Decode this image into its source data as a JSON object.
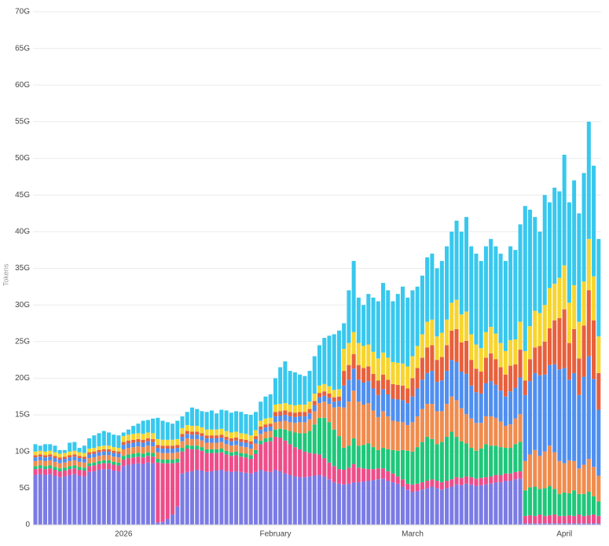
{
  "chart_data": {
    "type": "stacked-bar",
    "ylabel": "Tokens",
    "ylim": [
      0,
      70
    ],
    "yticks": [
      0,
      {
        "value": 5,
        "label": "5G"
      },
      {
        "value": 10,
        "label": "10G"
      },
      {
        "value": 15,
        "label": "15G"
      },
      {
        "value": 20,
        "label": "20G"
      },
      {
        "value": 25,
        "label": "25G"
      },
      {
        "value": 30,
        "label": "30G"
      },
      {
        "value": 35,
        "label": "35G"
      },
      {
        "value": 40,
        "label": "40G"
      },
      {
        "value": 45,
        "label": "45G"
      },
      {
        "value": 50,
        "label": "50G"
      },
      {
        "value": 55,
        "label": "55G"
      },
      {
        "value": 60,
        "label": "60G"
      },
      {
        "value": 65,
        "label": "65G"
      },
      {
        "value": 70,
        "label": "70G"
      }
    ],
    "grid": true,
    "categories": [
      null,
      null,
      null,
      null,
      null,
      null,
      null,
      null,
      null,
      null,
      null,
      null,
      null,
      null,
      null,
      null,
      null,
      null,
      "2026",
      null,
      null,
      null,
      null,
      null,
      null,
      null,
      null,
      null,
      null,
      null,
      null,
      null,
      null,
      null,
      null,
      null,
      null,
      null,
      null,
      null,
      null,
      null,
      null,
      null,
      null,
      null,
      null,
      null,
      null,
      "February",
      null,
      null,
      null,
      null,
      null,
      null,
      null,
      null,
      null,
      null,
      null,
      null,
      null,
      null,
      null,
      null,
      null,
      null,
      null,
      null,
      null,
      null,
      null,
      null,
      null,
      null,
      null,
      "March",
      null,
      null,
      null,
      null,
      null,
      null,
      null,
      null,
      null,
      null,
      null,
      null,
      null,
      null,
      null,
      null,
      null,
      null,
      null,
      null,
      null,
      null,
      null,
      null,
      null,
      null,
      null,
      null,
      null,
      null,
      "April",
      null,
      null,
      null,
      null,
      null,
      null,
      null
    ],
    "series": [
      {
        "color": "#7b7be6",
        "values": [
          6.8,
          6.9,
          6.8,
          6.9,
          6.7,
          6.5,
          6.6,
          6.8,
          6.9,
          6.7,
          6.6,
          7.2,
          7.3,
          7.5,
          7.6,
          7.6,
          7.4,
          7.3,
          8.0,
          8.2,
          8.3,
          8.4,
          8.3,
          8.5,
          8.4,
          0.3,
          0.4,
          0.8,
          1.4,
          2.5,
          7.0,
          7.2,
          7.3,
          7.5,
          7.4,
          7.2,
          7.3,
          7.4,
          7.5,
          7.3,
          7.2,
          7.3,
          7.2,
          7.1,
          7.0,
          7.2,
          7.5,
          7.3,
          7.2,
          7.5,
          7.3,
          7.0,
          6.8,
          6.6,
          6.5,
          6.5,
          6.6,
          6.7,
          6.8,
          6.6,
          6.2,
          5.8,
          5.6,
          5.5,
          5.6,
          5.8,
          5.8,
          5.9,
          6.0,
          6.1,
          6.2,
          6.3,
          6.0,
          5.8,
          5.6,
          5.2,
          4.8,
          4.5,
          4.6,
          4.8,
          5.0,
          5.2,
          5.0,
          4.8,
          5.0,
          5.2,
          5.5,
          5.4,
          5.6,
          5.5,
          5.3,
          5.4,
          5.5,
          5.6,
          5.8,
          5.8,
          6.0,
          6.0,
          6.2,
          6.3,
          0.2,
          0.2,
          0.2,
          0.2,
          0.2,
          0.2,
          0.2,
          0.2,
          0.2,
          0.2,
          0.2,
          0.2,
          0.2,
          0.2,
          0.2,
          0.2
        ]
      },
      {
        "color": "#ee4d8a",
        "values": [
          0.8,
          0.8,
          0.8,
          0.8,
          0.8,
          0.8,
          0.8,
          0.8,
          0.8,
          0.8,
          0.8,
          0.8,
          0.8,
          0.8,
          0.8,
          0.8,
          0.8,
          0.8,
          0.9,
          0.9,
          0.9,
          0.9,
          0.9,
          0.9,
          0.9,
          8.2,
          8.0,
          7.6,
          7.0,
          6.0,
          3.0,
          3.2,
          3.0,
          2.8,
          2.7,
          2.6,
          2.5,
          2.4,
          2.4,
          2.3,
          2.2,
          2.2,
          2.1,
          2.1,
          2.0,
          2.5,
          3.5,
          4.0,
          4.2,
          4.5,
          4.6,
          4.5,
          4.2,
          4.0,
          3.8,
          3.5,
          3.2,
          3.0,
          2.8,
          2.5,
          2.3,
          2.2,
          2.0,
          2.0,
          2.2,
          2.5,
          2.0,
          1.8,
          1.6,
          1.5,
          1.5,
          1.4,
          1.3,
          1.2,
          1.0,
          1.0,
          0.8,
          1,
          1,
          1,
          1,
          1,
          1,
          1,
          1,
          1,
          1,
          1,
          1,
          1,
          1,
          1,
          1,
          1,
          1,
          1,
          1,
          1,
          1,
          1,
          1.0,
          1.1,
          1.0,
          1.2,
          1.0,
          1.1,
          1.2,
          1.0,
          1.0,
          1.1,
          1.0,
          1.2,
          1.0,
          1.1,
          1.2,
          1.0
        ]
      },
      {
        "color": "#1fc77a",
        "values": [
          0.4,
          0.4,
          0.4,
          0.4,
          0.4,
          0.4,
          0.4,
          0.4,
          0.4,
          0.4,
          0.4,
          0.4,
          0.4,
          0.4,
          0.4,
          0.4,
          0.4,
          0.4,
          0.5,
          0.5,
          0.5,
          0.5,
          0.5,
          0.5,
          0.5,
          0.5,
          0.5,
          0.5,
          0.5,
          0.5,
          0.5,
          0.5,
          0.5,
          0.5,
          0.5,
          0.5,
          0.5,
          0.5,
          0.5,
          0.5,
          0.5,
          0.5,
          0.5,
          0.5,
          0.5,
          0.5,
          0.5,
          0.5,
          0.5,
          1.0,
          1.2,
          1.5,
          1.8,
          2.0,
          2.2,
          2.5,
          3.0,
          4.0,
          5.0,
          5.5,
          5.5,
          5.0,
          4.5,
          3.0,
          3.0,
          3.5,
          3.0,
          3.2,
          3.5,
          3.0,
          2.5,
          2.8,
          3.0,
          3.2,
          3.5,
          4.0,
          4.5,
          4.5,
          5.0,
          5.5,
          6.0,
          5.5,
          5.0,
          5.5,
          6.0,
          6.5,
          5.5,
          5.0,
          4.5,
          4.0,
          3.8,
          4.0,
          4.5,
          4.2,
          4.0,
          3.8,
          3.5,
          3.5,
          3.8,
          4.0,
          3.5,
          3.8,
          4.0,
          3.5,
          3.8,
          4.0,
          3.5,
          3.0,
          3.2,
          3.0,
          3.5,
          2.8,
          3.0,
          3.2,
          2.5,
          2.0
        ]
      },
      {
        "color": "#f08c4e",
        "values": [
          0.7,
          0.7,
          0.7,
          0.7,
          0.7,
          0.7,
          0.7,
          0.7,
          0.7,
          0.7,
          0.7,
          0.7,
          0.7,
          0.7,
          0.7,
          0.7,
          0.7,
          0.7,
          0.9,
          0.9,
          0.9,
          0.9,
          0.9,
          0.9,
          0.9,
          0.9,
          0.9,
          0.9,
          0.9,
          0.9,
          0.9,
          0.9,
          0.9,
          0.9,
          0.9,
          0.9,
          0.9,
          0.9,
          0.9,
          0.9,
          0.9,
          0.9,
          0.9,
          0.9,
          0.9,
          0.9,
          0.9,
          0.9,
          0.9,
          1,
          1,
          1.2,
          1.2,
          1.3,
          1.5,
          1.5,
          1.6,
          1.8,
          2.0,
          2.2,
          2.5,
          3.0,
          4.0,
          5.5,
          6.0,
          6.5,
          6.0,
          5.5,
          5.5,
          5.0,
          4.5,
          5.0,
          4.5,
          4.0,
          4.0,
          3.8,
          3.5,
          4.0,
          4.2,
          4.5,
          4.5,
          4.8,
          4.5,
          4.2,
          4.5,
          4.8,
          5.0,
          4.5,
          4.0,
          4.0,
          3.8,
          3.5,
          3.8,
          4.0,
          3.8,
          3.5,
          3.0,
          3.2,
          3.5,
          3.8,
          4.0,
          4.5,
          5.0,
          4.5,
          5.0,
          5.5,
          5.0,
          4.5,
          4.0,
          4.5,
          4.0,
          3.5,
          4.0,
          4.5,
          4.0,
          3.5
        ]
      },
      {
        "color": "#4f8ff0",
        "values": [
          0.5,
          0.5,
          0.5,
          0.5,
          0.5,
          0.5,
          0.5,
          0.5,
          0.5,
          0.5,
          0.5,
          0.5,
          0.5,
          0.5,
          0.5,
          0.5,
          0.5,
          0.5,
          0.6,
          0.6,
          0.6,
          0.6,
          0.6,
          0.6,
          0.6,
          0.6,
          0.6,
          0.6,
          0.6,
          0.6,
          0.6,
          0.6,
          0.6,
          0.6,
          0.6,
          0.6,
          0.6,
          0.6,
          0.6,
          0.6,
          0.6,
          0.6,
          0.6,
          0.6,
          0.6,
          0.6,
          0.6,
          0.6,
          0.6,
          0.8,
          0.8,
          0.8,
          0.8,
          0.8,
          0.8,
          0.8,
          0.8,
          0.8,
          0.8,
          0.8,
          0.8,
          0.8,
          0.8,
          3.0,
          3.0,
          3.0,
          3.0,
          3.0,
          3.0,
          3.0,
          3.0,
          3.0,
          3.0,
          3.0,
          3.0,
          3.0,
          3.0,
          3.5,
          3.8,
          4.0,
          4.2,
          4.5,
          4.0,
          4.2,
          4.5,
          5.0,
          5.2,
          5.0,
          5.5,
          4.5,
          4.2,
          4.0,
          4.5,
          4.8,
          4.5,
          4.2,
          4.0,
          4.5,
          4.2,
          5.0,
          9.0,
          10.0,
          10.5,
          11.0,
          10.5,
          11.0,
          12.0,
          12.5,
          13.0,
          11.0,
          12.0,
          10.0,
          12.0,
          14.0,
          12.0,
          9.0
        ]
      },
      {
        "color": "#e8603c",
        "values": [
          0.3,
          0.3,
          0.3,
          0.3,
          0.3,
          0.3,
          0.3,
          0.3,
          0.3,
          0.3,
          0.3,
          0.3,
          0.3,
          0.3,
          0.3,
          0.3,
          0.3,
          0.3,
          0.4,
          0.4,
          0.4,
          0.4,
          0.4,
          0.4,
          0.4,
          0.4,
          0.4,
          0.4,
          0.4,
          0.4,
          0.4,
          0.4,
          0.4,
          0.4,
          0.4,
          0.4,
          0.4,
          0.4,
          0.4,
          0.4,
          0.4,
          0.4,
          0.4,
          0.4,
          0.4,
          0.4,
          0.4,
          0.4,
          0.4,
          0.6,
          0.6,
          0.6,
          0.6,
          0.6,
          0.6,
          0.6,
          0.6,
          0.6,
          0.6,
          0.6,
          0.6,
          0.6,
          0.6,
          2.0,
          2.0,
          2.0,
          2.0,
          2.0,
          2.0,
          2.0,
          2.0,
          2.0,
          2.0,
          2.0,
          2.0,
          2.0,
          2.0,
          2.5,
          2.8,
          3.0,
          3.5,
          3.5,
          3.0,
          3.2,
          3.5,
          4.0,
          4.5,
          4.0,
          4.5,
          3.5,
          3.2,
          3.0,
          3.5,
          3.8,
          3.5,
          3.2,
          3.0,
          3.5,
          3.2,
          3.8,
          2.0,
          3.0,
          3.5,
          4.0,
          4.5,
          5.0,
          6.0,
          7.0,
          8.0,
          5.0,
          6.0,
          5.0,
          7.0,
          9.0,
          8.0,
          5.0
        ]
      },
      {
        "color": "#f7d52e",
        "values": [
          0.5,
          0.5,
          0.5,
          0.5,
          0.5,
          0.5,
          0.5,
          0.5,
          0.5,
          0.5,
          0.5,
          0.5,
          0.5,
          0.5,
          0.5,
          0.5,
          0.5,
          0.5,
          0.8,
          0.8,
          0.8,
          0.8,
          0.8,
          0.8,
          0.8,
          0.8,
          0.8,
          0.8,
          0.8,
          0.8,
          0.8,
          0.8,
          0.8,
          0.8,
          0.8,
          0.8,
          0.8,
          0.8,
          0.8,
          0.8,
          0.8,
          0.8,
          0.8,
          0.8,
          0.8,
          0.8,
          0.8,
          0.8,
          0.8,
          1.0,
          1.0,
          1.0,
          1.0,
          1.0,
          1.0,
          1.0,
          1.0,
          1.0,
          1.0,
          1.0,
          1.0,
          1.0,
          1.0,
          3.0,
          3.0,
          3.0,
          3.0,
          3.0,
          3.0,
          3.0,
          3.0,
          3.0,
          3.0,
          3.0,
          3.0,
          3.0,
          3.0,
          3.0,
          3.0,
          3.2,
          3.5,
          3.5,
          3.2,
          3.3,
          3.5,
          3.8,
          4.0,
          3.8,
          4.0,
          3.5,
          3.3,
          3.2,
          3.5,
          3.6,
          3.5,
          3.3,
          3.2,
          3.5,
          3.4,
          3.8,
          4.0,
          4.5,
          5.0,
          4.5,
          5.0,
          5.5,
          5.0,
          5.5,
          6.0,
          5.5,
          6.0,
          5.0,
          6.0,
          7.0,
          6.0,
          5.0
        ]
      },
      {
        "color": "#38c8ee",
        "values": [
          1.0,
          0.7,
          1.0,
          0.9,
          0.9,
          0.5,
          0.4,
          1.2,
          1.2,
          0.6,
          1.0,
          1.4,
          1.7,
          1.8,
          2.0,
          1.8,
          1.7,
          1.7,
          0.5,
          0.7,
          1.1,
          1.3,
          1.8,
          1.7,
          2.0,
          2.9,
          2.6,
          2.4,
          2.2,
          2.5,
          1.6,
          1.8,
          2.5,
          2.3,
          2.2,
          2.4,
          2.6,
          2.2,
          2.6,
          2.8,
          2.7,
          2.8,
          2.9,
          2.7,
          2.8,
          2.5,
          2.6,
          3.0,
          3.2,
          3.6,
          5.0,
          5.7,
          4.6,
          4.5,
          4.1,
          3.9,
          4.2,
          5.1,
          5.5,
          6.3,
          6.9,
          7.6,
          8.0,
          3.5,
          7.2,
          9.7,
          6.2,
          5.6,
          6.9,
          7.4,
          7.8,
          9.5,
          9.2,
          8.3,
          9.4,
          10.5,
          9.4,
          9.0,
          8.1,
          8.0,
          8.8,
          9.0,
          9.3,
          9.8,
          10.0,
          9.7,
          10.8,
          11.3,
          12.9,
          12.0,
          12.4,
          11.9,
          11.7,
          12.0,
          11.9,
          12.2,
          12.3,
          12.8,
          12.2,
          13.3,
          19.8,
          15.9,
          12.8,
          11.1,
          15.0,
          11.7,
          13.1,
          11.8,
          15.1,
          13.7,
          14.3,
          14.8,
          14.8,
          16.0,
          15.1,
          13.3
        ]
      }
    ]
  }
}
